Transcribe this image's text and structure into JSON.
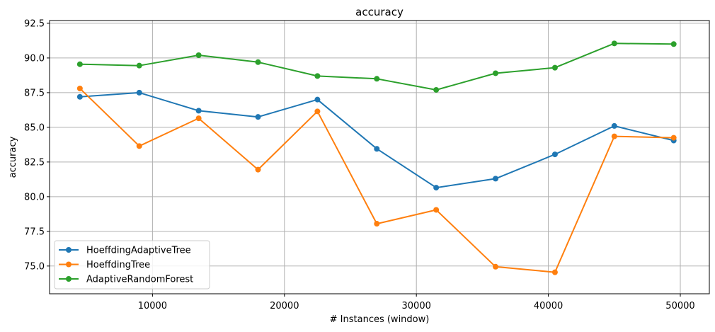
{
  "chart_data": {
    "type": "line",
    "title": "accuracy",
    "xlabel": "# Instances (window)",
    "ylabel": "accuracy",
    "xlim": [
      2200,
      52200
    ],
    "ylim": [
      73.0,
      92.7
    ],
    "xticks": [
      10000,
      20000,
      30000,
      40000,
      50000
    ],
    "xtick_labels": [
      "10000",
      "20000",
      "30000",
      "40000",
      "50000"
    ],
    "yticks": [
      75.0,
      77.5,
      80.0,
      82.5,
      85.0,
      87.5,
      90.0,
      92.5
    ],
    "ytick_labels": [
      "75.0",
      "77.5",
      "80.0",
      "82.5",
      "85.0",
      "87.5",
      "90.0",
      "92.5"
    ],
    "grid": true,
    "legend_position": "lower-left",
    "x": [
      4500,
      9000,
      13500,
      18000,
      22500,
      27000,
      31500,
      36000,
      40500,
      45000,
      49500
    ],
    "series": [
      {
        "name": "HoeffdingAdaptiveTree",
        "color": "#1f77b4",
        "values": [
          87.2,
          87.5,
          86.2,
          85.75,
          87.0,
          83.45,
          80.65,
          81.3,
          83.05,
          85.1,
          84.05
        ]
      },
      {
        "name": "HoeffdingTree",
        "color": "#ff7f0e",
        "values": [
          87.8,
          83.65,
          85.65,
          81.95,
          86.15,
          78.05,
          79.05,
          74.95,
          74.55,
          84.35,
          84.25
        ]
      },
      {
        "name": "AdaptiveRandomForest",
        "color": "#2ca02c",
        "values": [
          89.55,
          89.45,
          90.2,
          89.7,
          88.7,
          88.5,
          87.7,
          88.9,
          89.3,
          91.05,
          91.0
        ]
      }
    ]
  }
}
